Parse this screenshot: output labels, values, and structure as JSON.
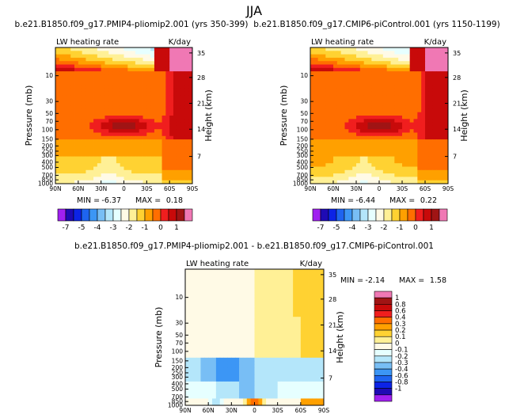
{
  "figure": {
    "title": "JJA"
  },
  "colors": {
    "scale": [
      "#a020f0",
      "#1e0ab4",
      "#0c23e6",
      "#1e64f0",
      "#3c96f5",
      "#78bef5",
      "#b4e6fa",
      "#e6ffff",
      "#fffae6",
      "#fff096",
      "#ffd232",
      "#ffa000",
      "#ff6e00",
      "#f01e1e",
      "#c80a0a",
      "#a01414",
      "#f078b4"
    ],
    "diff_scale": [
      "#a020f0",
      "#1e0ab4",
      "#0c23e6",
      "#1e64f0",
      "#3c96f5",
      "#78bef5",
      "#b4e6fa",
      "#e6ffff",
      "#fffae6",
      "#fff096",
      "#ffd232",
      "#ffa000",
      "#ff6e00",
      "#f01e1e",
      "#c80a0a",
      "#a01414",
      "#f078b4"
    ]
  },
  "chart_data": [
    {
      "type": "heatmap",
      "id": "pliomip2",
      "title": "b.e21.B1850.f09_g17.PMIP4-pliomip2.001 (yrs 350-399)",
      "field_label": "LW heating rate",
      "units": "K/day",
      "ylabel": "Pressure (mb)",
      "ylabel_right": "Height (km)",
      "x_ticks": [
        "90N",
        "60N",
        "30N",
        "0",
        "30S",
        "60S",
        "90S"
      ],
      "y_ticks": [
        "10",
        "30",
        "50",
        "70",
        "100",
        "150",
        "200",
        "250",
        "300",
        "400",
        "500",
        "700",
        "850",
        "1000"
      ],
      "height_ticks": [
        "35",
        "28",
        "21",
        "14",
        "7"
      ],
      "stats": {
        "min_label": "MIN =",
        "min": "-6.37",
        "max_label": "MAX =",
        "max": "0.18"
      },
      "levels": [
        "-7",
        "-6",
        "-5",
        "-4.5",
        "-4",
        "-3.5",
        "-3",
        "-2.5",
        "-2",
        "-1.5",
        "-1",
        "-0.5",
        "0",
        "0.5",
        "1"
      ],
      "colorbar_labels": [
        "-7",
        "-5",
        "-4",
        "-3",
        "-2",
        "-1",
        "0",
        "1"
      ]
    },
    {
      "type": "heatmap",
      "id": "picontrol",
      "title": "b.e21.B1850.f09_g17.CMIP6-piControl.001 (yrs 1150-1199)",
      "field_label": "LW heating rate",
      "units": "K/day",
      "ylabel": "Pressure (mb)",
      "ylabel_right": "Height (km)",
      "x_ticks": [
        "90N",
        "60N",
        "30N",
        "0",
        "30S",
        "60S",
        "90S"
      ],
      "y_ticks": [
        "10",
        "30",
        "50",
        "70",
        "100",
        "150",
        "200",
        "250",
        "300",
        "400",
        "500",
        "700",
        "850",
        "1000"
      ],
      "height_ticks": [
        "35",
        "28",
        "21",
        "14",
        "7"
      ],
      "stats": {
        "min_label": "MIN =",
        "min": "-6.44",
        "max_label": "MAX =",
        "max": "0.22"
      },
      "colorbar_labels": [
        "-7",
        "-5",
        "-4",
        "-3",
        "-2",
        "-1",
        "0",
        "1"
      ]
    },
    {
      "type": "heatmap",
      "id": "difference",
      "title": "b.e21.B1850.f09_g17.PMIP4-pliomip2.001 - b.e21.B1850.f09_g17.CMIP6-piControl.001",
      "field_label": "LW heating rate",
      "units": "K/day",
      "ylabel": "Pressure (mb)",
      "ylabel_right": "Height (km)",
      "x_ticks": [
        "90N",
        "60N",
        "30N",
        "0",
        "30S",
        "60S",
        "90S"
      ],
      "y_ticks": [
        "10",
        "30",
        "50",
        "70",
        "100",
        "150",
        "200",
        "250",
        "300",
        "400",
        "500",
        "700",
        "850",
        "1000"
      ],
      "height_ticks": [
        "35",
        "28",
        "21",
        "14",
        "7"
      ],
      "stats": {
        "min_label": "MIN =",
        "min": "-2.14",
        "max_label": "MAX =",
        "max": "1.58"
      },
      "colorbar_labels": [
        "1",
        "0.8",
        "0.6",
        "0.4",
        "0.3",
        "0.2",
        "0.1",
        "0",
        "-0.1",
        "-0.2",
        "-0.3",
        "-0.4",
        "-0.6",
        "-0.8",
        "-1"
      ]
    }
  ]
}
